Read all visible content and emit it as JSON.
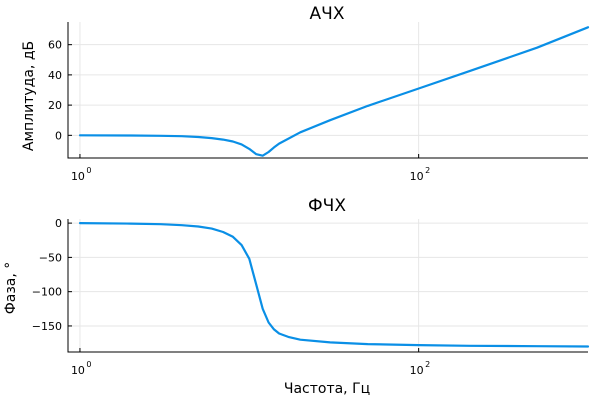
{
  "chart_data": [
    {
      "type": "line",
      "title": "АЧХ",
      "xlabel": "",
      "ylabel": "Амплитуда, дБ",
      "xscale": "log",
      "xlim": [
        0.85,
        1000
      ],
      "ylim": [
        -15,
        75
      ],
      "xticks": [
        {
          "base": "10",
          "exp": "0",
          "value": 1
        },
        {
          "base": "10",
          "exp": "2",
          "value": 100
        }
      ],
      "yticks": [
        {
          "label": "0",
          "value": 0
        },
        {
          "label": "20",
          "value": 20
        },
        {
          "label": "40",
          "value": 40
        },
        {
          "label": "60",
          "value": 60
        }
      ],
      "grid": true,
      "legend": "none",
      "color": "#0a8fe6",
      "series": [
        {
          "x": [
            1,
            2,
            3,
            4,
            5,
            6,
            7,
            8,
            9,
            10,
            11,
            12,
            13,
            14,
            15,
            20,
            30,
            50,
            100,
            200,
            500,
            1000
          ],
          "y": [
            0,
            -0.1,
            -0.3,
            -0.6,
            -1.1,
            -1.8,
            -2.8,
            -4.1,
            -6.0,
            -9.0,
            -12.5,
            -13.5,
            -11.0,
            -8.0,
            -5.5,
            2.0,
            10.0,
            19.5,
            31.0,
            42.5,
            58.0,
            71.5
          ]
        }
      ]
    },
    {
      "type": "line",
      "title": "ФЧХ",
      "xlabel": "Частота, Гц",
      "ylabel": "Фаза, °",
      "xscale": "log",
      "xlim": [
        0.85,
        1000
      ],
      "ylim": [
        -188,
        6
      ],
      "xticks": [
        {
          "base": "10",
          "exp": "0",
          "value": 1
        },
        {
          "base": "10",
          "exp": "2",
          "value": 100
        }
      ],
      "yticks": [
        {
          "label": "0",
          "value": 0
        },
        {
          "label": "−50",
          "value": -50
        },
        {
          "label": "−100",
          "value": -100
        },
        {
          "label": "−150",
          "value": -150
        }
      ],
      "grid": true,
      "legend": "none",
      "color": "#0a8fe6",
      "series": [
        {
          "x": [
            1,
            2,
            3,
            4,
            5,
            6,
            7,
            8,
            9,
            10,
            11,
            12,
            13,
            14,
            15,
            17,
            20,
            30,
            50,
            100,
            200,
            500,
            1000
          ],
          "y": [
            0,
            -0.7,
            -1.6,
            -3.0,
            -5.0,
            -8.0,
            -13.0,
            -20.0,
            -32.0,
            -52.0,
            -90.0,
            -125.0,
            -145.0,
            -155.0,
            -161.0,
            -166.0,
            -170.0,
            -174.0,
            -176.5,
            -178.0,
            -179.0,
            -179.5,
            -180.0
          ]
        }
      ]
    }
  ]
}
